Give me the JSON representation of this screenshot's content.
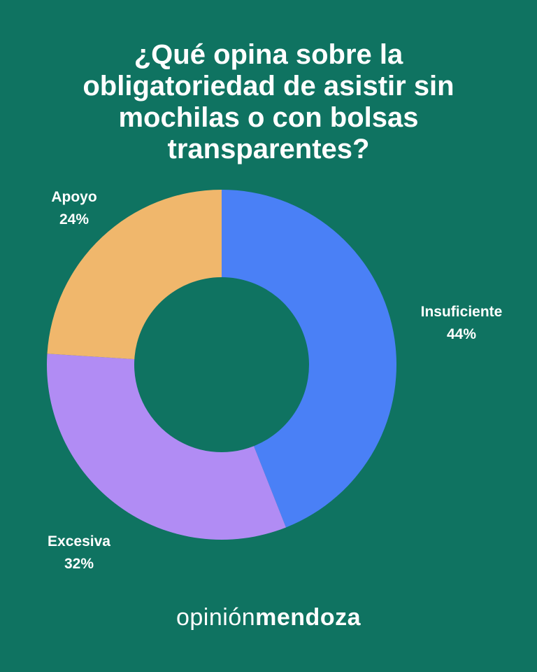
{
  "title": "¿Qué opina sobre la\nobligatoriedad de asistir sin\nmochilas o con bolsas\ntransparentes?",
  "brand": {
    "prefix": "opinión",
    "name": "mendoza"
  },
  "colors": {
    "background": "#0f7361",
    "insuficiente": "#4a80f6",
    "excesiva": "#b18cf4",
    "apoyo": "#f0b76c",
    "text": "#ffffff"
  },
  "chart_data": {
    "type": "pie",
    "variant": "donut",
    "title": "¿Qué opina sobre la obligatoriedad de asistir sin mochilas o con bolsas transparentes?",
    "slices": [
      {
        "label": "Insuficiente",
        "value": 44,
        "value_label": "44%",
        "color": "#4a80f6"
      },
      {
        "label": "Excesiva",
        "value": 32,
        "value_label": "32%",
        "color": "#b18cf4"
      },
      {
        "label": "Apoyo",
        "value": 24,
        "value_label": "24%",
        "color": "#f0b76c"
      }
    ],
    "start_angle": "top",
    "direction": "clockwise",
    "legend": "none"
  }
}
